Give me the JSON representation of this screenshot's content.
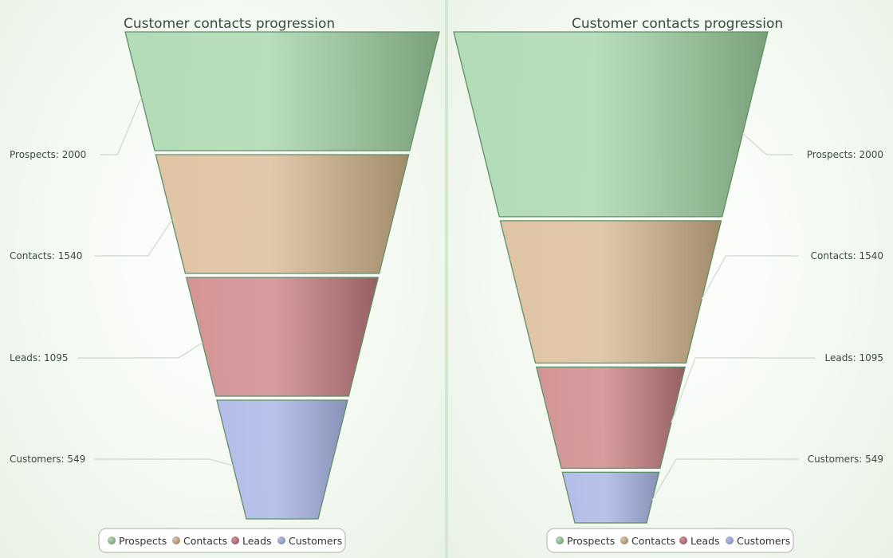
{
  "chart_data": [
    {
      "type": "funnel",
      "mode": "height-by-value",
      "title": "Customer contacts progression",
      "categories": [
        "Prospects",
        "Contacts",
        "Leads",
        "Customers"
      ],
      "values": [
        2000,
        1540,
        1095,
        549
      ],
      "series": [
        {
          "values": [
            2000,
            1540,
            1095,
            549
          ]
        }
      ],
      "labels_side": "left",
      "legend": "bottom"
    },
    {
      "type": "funnel",
      "mode": "height-by-value",
      "title": "Customer contacts progression",
      "categories": [
        "Prospects",
        "Contacts",
        "Leads",
        "Customers"
      ],
      "values": [
        2000,
        1540,
        1095,
        549
      ],
      "series": [
        {
          "values": [
            2000,
            1540,
            1095,
            549
          ]
        }
      ],
      "labels_side": "right",
      "legend": "bottom"
    }
  ],
  "colors": {
    "Prospects": [
      "#b3dbb7",
      "#7aa07a"
    ],
    "Contacts": [
      "#e0c4a4",
      "#a08b6b"
    ],
    "Leads": [
      "#d49496",
      "#966063"
    ],
    "Customers": [
      "#b3bde8",
      "#8890b6"
    ],
    "outline": "#5f8f66",
    "callout": "#d2ded0"
  }
}
